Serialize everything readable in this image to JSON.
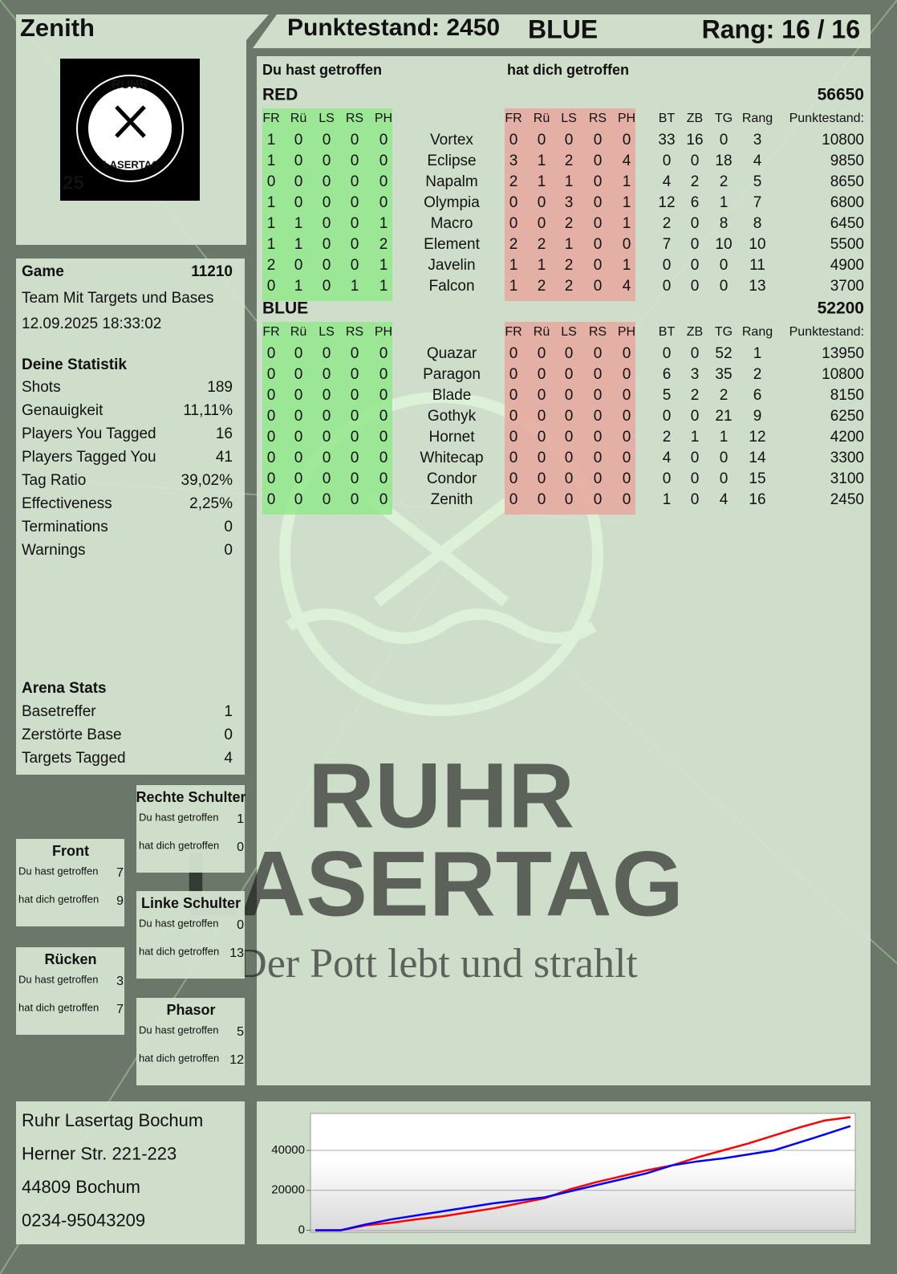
{
  "header": {
    "player": "Zenith",
    "score": "Punktestand: 2450",
    "team": "BLUE",
    "rank": "Rang: 16 / 16"
  },
  "logo": {
    "arc": "RUHR",
    "ring": "LASERTAG",
    "badge": "25"
  },
  "watermark": {
    "line1": "RUHR",
    "line2": "LASERTAG",
    "slogan": "Der Pott lebt und strahlt"
  },
  "game": {
    "label": "Game",
    "id": 11210,
    "mode": "Team Mit Targets und Bases",
    "date": "12.09.2025 18:33:02"
  },
  "stats": {
    "title": "Deine Statistik",
    "rows": [
      [
        "Shots",
        189
      ],
      [
        "Genauigkeit",
        "11,11%"
      ],
      [
        "Players You Tagged",
        16
      ],
      [
        "Players Tagged You",
        41
      ],
      [
        "Tag Ratio",
        "39,02%"
      ],
      [
        "Effectiveness",
        "2,25%"
      ],
      [
        "Terminations",
        0
      ],
      [
        "Warnings",
        0
      ]
    ]
  },
  "arena": {
    "title": "Arena Stats",
    "rows": [
      [
        "Basetreffer",
        1
      ],
      [
        "Zerstörte Base",
        0
      ],
      [
        "Targets Tagged",
        4
      ]
    ]
  },
  "zones": [
    {
      "title": "Rechte Schulter",
      "rows": [
        [
          "Du hast getroffen",
          1
        ],
        [
          "hat dich getroffen",
          0
        ]
      ]
    },
    {
      "title": "Front",
      "rows": [
        [
          "Du hast getroffen",
          7
        ],
        [
          "hat dich getroffen",
          9
        ]
      ]
    },
    {
      "title": "Linke Schulter",
      "rows": [
        [
          "Du hast getroffen",
          0
        ],
        [
          "hat dich getroffen",
          13
        ]
      ]
    },
    {
      "title": "Rücken",
      "rows": [
        [
          "Du hast getroffen",
          3
        ],
        [
          "hat dich getroffen",
          7
        ]
      ]
    },
    {
      "title": "Phasor",
      "rows": [
        [
          "Du hast getroffen",
          5
        ],
        [
          "hat dich getroffen",
          12
        ]
      ]
    }
  ],
  "scores": {
    "hit_title": "Du hast getroffen",
    "got_title": "hat dich getroffen",
    "teams": [
      {
        "name": "RED",
        "color": "#e00000",
        "total": 56650,
        "hit_headers": [
          "FR",
          "Rü",
          "LS",
          "RS",
          "PH"
        ],
        "got_headers": [
          "FR",
          "Rü",
          "LS",
          "RS",
          "PH"
        ],
        "stat_headers": [
          "BT",
          "ZB",
          "TG",
          "Rang",
          "Punktestand:"
        ],
        "players": [
          {
            "name": "Vortex",
            "hit": [
              1,
              0,
              0,
              0,
              0
            ],
            "got": [
              0,
              0,
              0,
              0,
              0
            ],
            "stats": [
              33,
              16,
              0,
              3,
              10800
            ]
          },
          {
            "name": "Eclipse",
            "hit": [
              1,
              0,
              0,
              0,
              0
            ],
            "got": [
              3,
              1,
              2,
              0,
              4
            ],
            "stats": [
              0,
              0,
              18,
              4,
              9850
            ]
          },
          {
            "name": "Napalm",
            "hit": [
              0,
              0,
              0,
              0,
              0
            ],
            "got": [
              2,
              1,
              1,
              0,
              1
            ],
            "stats": [
              4,
              2,
              2,
              5,
              8650
            ]
          },
          {
            "name": "Olympia",
            "hit": [
              1,
              0,
              0,
              0,
              0
            ],
            "got": [
              0,
              0,
              3,
              0,
              1
            ],
            "stats": [
              12,
              6,
              1,
              7,
              6800
            ]
          },
          {
            "name": "Macro",
            "hit": [
              1,
              1,
              0,
              0,
              1
            ],
            "got": [
              0,
              0,
              2,
              0,
              1
            ],
            "stats": [
              2,
              0,
              8,
              8,
              6450
            ]
          },
          {
            "name": "Element",
            "hit": [
              1,
              1,
              0,
              0,
              2
            ],
            "got": [
              2,
              2,
              1,
              0,
              0
            ],
            "stats": [
              7,
              0,
              10,
              10,
              5500
            ]
          },
          {
            "name": "Javelin",
            "hit": [
              2,
              0,
              0,
              0,
              1
            ],
            "got": [
              1,
              1,
              2,
              0,
              1
            ],
            "stats": [
              0,
              0,
              0,
              11,
              4900
            ]
          },
          {
            "name": "Falcon",
            "hit": [
              0,
              1,
              0,
              1,
              1
            ],
            "got": [
              1,
              2,
              2,
              0,
              4
            ],
            "stats": [
              0,
              0,
              0,
              13,
              3700
            ]
          }
        ]
      },
      {
        "name": "BLUE",
        "color": "#0000e0",
        "total": 52200,
        "hit_headers": [
          "FR",
          "Rü",
          "LS",
          "RS",
          "PH"
        ],
        "got_headers": [
          "FR",
          "Rü",
          "LS",
          "RS",
          "PH"
        ],
        "stat_headers": [
          "BT",
          "ZB",
          "TG",
          "Rang",
          "Punktestand:"
        ],
        "players": [
          {
            "name": "Quazar",
            "hit": [
              0,
              0,
              0,
              0,
              0
            ],
            "got": [
              0,
              0,
              0,
              0,
              0
            ],
            "stats": [
              0,
              0,
              52,
              1,
              13950
            ]
          },
          {
            "name": "Paragon",
            "hit": [
              0,
              0,
              0,
              0,
              0
            ],
            "got": [
              0,
              0,
              0,
              0,
              0
            ],
            "stats": [
              6,
              3,
              35,
              2,
              10800
            ]
          },
          {
            "name": "Blade",
            "hit": [
              0,
              0,
              0,
              0,
              0
            ],
            "got": [
              0,
              0,
              0,
              0,
              0
            ],
            "stats": [
              5,
              2,
              2,
              6,
              8150
            ]
          },
          {
            "name": "Gothyk",
            "hit": [
              0,
              0,
              0,
              0,
              0
            ],
            "got": [
              0,
              0,
              0,
              0,
              0
            ],
            "stats": [
              0,
              0,
              21,
              9,
              6250
            ]
          },
          {
            "name": "Hornet",
            "hit": [
              0,
              0,
              0,
              0,
              0
            ],
            "got": [
              0,
              0,
              0,
              0,
              0
            ],
            "stats": [
              2,
              1,
              1,
              12,
              4200
            ]
          },
          {
            "name": "Whitecap",
            "hit": [
              0,
              0,
              0,
              0,
              0
            ],
            "got": [
              0,
              0,
              0,
              0,
              0
            ],
            "stats": [
              4,
              0,
              0,
              14,
              3300
            ]
          },
          {
            "name": "Condor",
            "hit": [
              0,
              0,
              0,
              0,
              0
            ],
            "got": [
              0,
              0,
              0,
              0,
              0
            ],
            "stats": [
              0,
              0,
              0,
              15,
              3100
            ]
          },
          {
            "name": "Zenith",
            "hit": [
              0,
              0,
              0,
              0,
              0
            ],
            "got": [
              0,
              0,
              0,
              0,
              0
            ],
            "stats": [
              1,
              0,
              4,
              16,
              2450
            ]
          }
        ]
      }
    ]
  },
  "address": [
    "Ruhr Lasertag Bochum",
    "Herner Str. 221-223",
    "44809 Bochum",
    "0234-95043209"
  ],
  "chart_data": {
    "type": "line",
    "ylim": [
      -1000,
      58500
    ],
    "yticks": [
      0,
      20000,
      40000
    ],
    "grid": true,
    "series": [
      {
        "color": "#ff0000",
        "values": [
          0,
          0,
          2500,
          3800,
          5500,
          7000,
          9000,
          11000,
          13500,
          16000,
          20500,
          24000,
          27000,
          30000,
          32500,
          36500,
          40000,
          43500,
          47500,
          51500,
          55000,
          56650
        ]
      },
      {
        "color": "#0000ff",
        "values": [
          0,
          0,
          3000,
          5500,
          7500,
          9500,
          11500,
          13500,
          15000,
          16500,
          19500,
          22500,
          25500,
          28500,
          32500,
          34500,
          36000,
          38000,
          40000,
          44000,
          48000,
          52200
        ]
      }
    ]
  }
}
